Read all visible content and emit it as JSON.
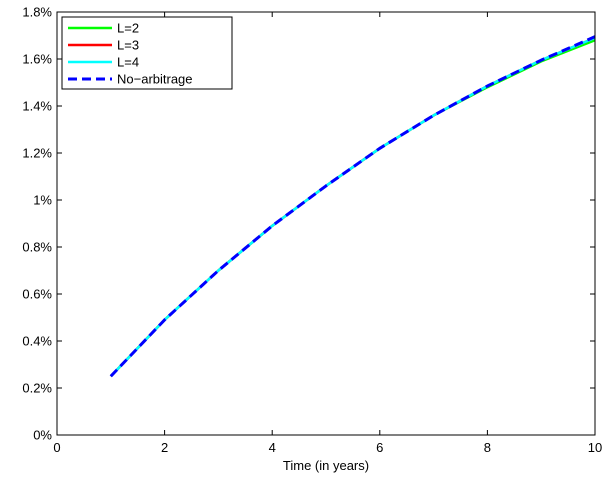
{
  "chart_data": {
    "type": "line",
    "xlabel": "Time (in years)",
    "ylabel": "",
    "xlim": [
      0,
      10
    ],
    "ylim": [
      0,
      1.8
    ],
    "x_ticks": [
      0,
      2,
      4,
      6,
      8,
      10
    ],
    "y_ticks": [
      0,
      0.2,
      0.4,
      0.6,
      0.8,
      1.0,
      1.2,
      1.4,
      1.6,
      1.8
    ],
    "y_tick_labels": [
      "0%",
      "0.2%",
      "0.4%",
      "0.6%",
      "0.8%",
      "1%",
      "1.2%",
      "1.4%",
      "1.6%",
      "1.8%"
    ],
    "grid": false,
    "legend_position": "top-left",
    "x": [
      1,
      2,
      3,
      4,
      5,
      6,
      7,
      8,
      9,
      10
    ],
    "series": [
      {
        "name": "L=2",
        "color": "#00ff00",
        "style": "solid",
        "values": [
          0.25,
          0.49,
          0.7,
          0.89,
          1.06,
          1.22,
          1.36,
          1.48,
          1.59,
          1.68
        ]
      },
      {
        "name": "L=3",
        "color": "#ff0000",
        "style": "solid",
        "values": [
          0.25,
          0.49,
          0.7,
          0.89,
          1.06,
          1.22,
          1.36,
          1.485,
          1.595,
          1.69
        ]
      },
      {
        "name": "L=4",
        "color": "#00ffff",
        "style": "solid",
        "values": [
          0.25,
          0.49,
          0.7,
          0.89,
          1.06,
          1.22,
          1.36,
          1.485,
          1.595,
          1.69
        ]
      },
      {
        "name": "No−arbitrage",
        "color": "#0000ff",
        "style": "dashed",
        "values": [
          0.25,
          0.49,
          0.7,
          0.89,
          1.06,
          1.22,
          1.36,
          1.485,
          1.595,
          1.695
        ]
      }
    ]
  }
}
